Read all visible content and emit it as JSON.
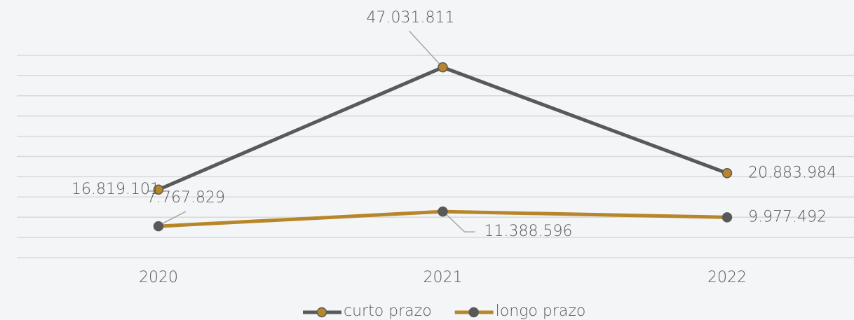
{
  "chart_data": {
    "type": "line",
    "categories": [
      "2020",
      "2021",
      "2022"
    ],
    "series": [
      {
        "name": "curto prazo",
        "color": "#595959",
        "marker_color": "#b8862a",
        "values": [
          16819101,
          47031811,
          20883984
        ],
        "value_labels": [
          "16.819.101",
          "47.031.811",
          "20.883.984"
        ]
      },
      {
        "name": "longo prazo",
        "color": "#b8862a",
        "marker_color": "#595959",
        "values": [
          7767829,
          11388596,
          9977492
        ],
        "value_labels": [
          "7.767.829",
          "11.388.596",
          "9.977.492"
        ]
      }
    ],
    "ylim": [
      0,
      50000000
    ],
    "yticks": [
      0,
      5000000,
      10000000,
      15000000,
      20000000,
      25000000,
      30000000,
      35000000,
      40000000,
      45000000,
      50000000
    ],
    "grid": true,
    "legend": "bottom"
  }
}
